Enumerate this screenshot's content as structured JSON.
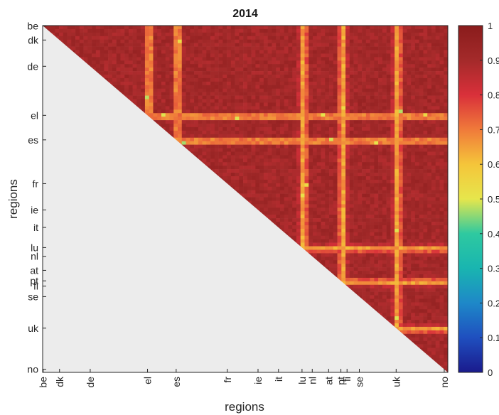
{
  "chart_data": {
    "type": "heatmap",
    "title": "2014",
    "xlabel": "regions",
    "ylabel": "regions",
    "categories": [
      "be",
      "dk",
      "de",
      "el",
      "es",
      "fr",
      "ie",
      "it",
      "lu",
      "nl",
      "at",
      "pt",
      "fi",
      "se",
      "uk",
      "no"
    ],
    "category_positions": [
      0,
      16,
      46,
      102,
      130,
      180,
      210,
      230,
      253,
      263,
      279,
      291,
      297,
      309,
      345,
      392
    ],
    "n_cells": 396,
    "triangle": "upper",
    "lower_triangle_color": "#ececec",
    "value_range": [
      0,
      1
    ],
    "colormap": "parula-jet (blue to red)",
    "colorbar": {
      "ticks": [
        0,
        0.1,
        0.2,
        0.3,
        0.4,
        0.5,
        0.6,
        0.7,
        0.8,
        0.9,
        1
      ],
      "tick_labels": [
        "0",
        "0.1",
        "0.2",
        "0.3",
        "0.4",
        "0.5",
        "0.6",
        "0.7",
        "0.8",
        "0.9",
        "1"
      ],
      "colors": [
        "#1a1a8c",
        "#1f4fbf",
        "#1e88c8",
        "#19b5b0",
        "#2ec9a0",
        "#e6e64c",
        "#f5c53a",
        "#f07a3a",
        "#d9303a",
        "#a42a2a",
        "#8a1c1c"
      ]
    },
    "approx_values": {
      "dominant": 0.95,
      "weaker_bands_around": [
        "el",
        "es",
        "lu",
        "pt",
        "uk"
      ],
      "min_visible": 0.45
    },
    "grid": false
  }
}
